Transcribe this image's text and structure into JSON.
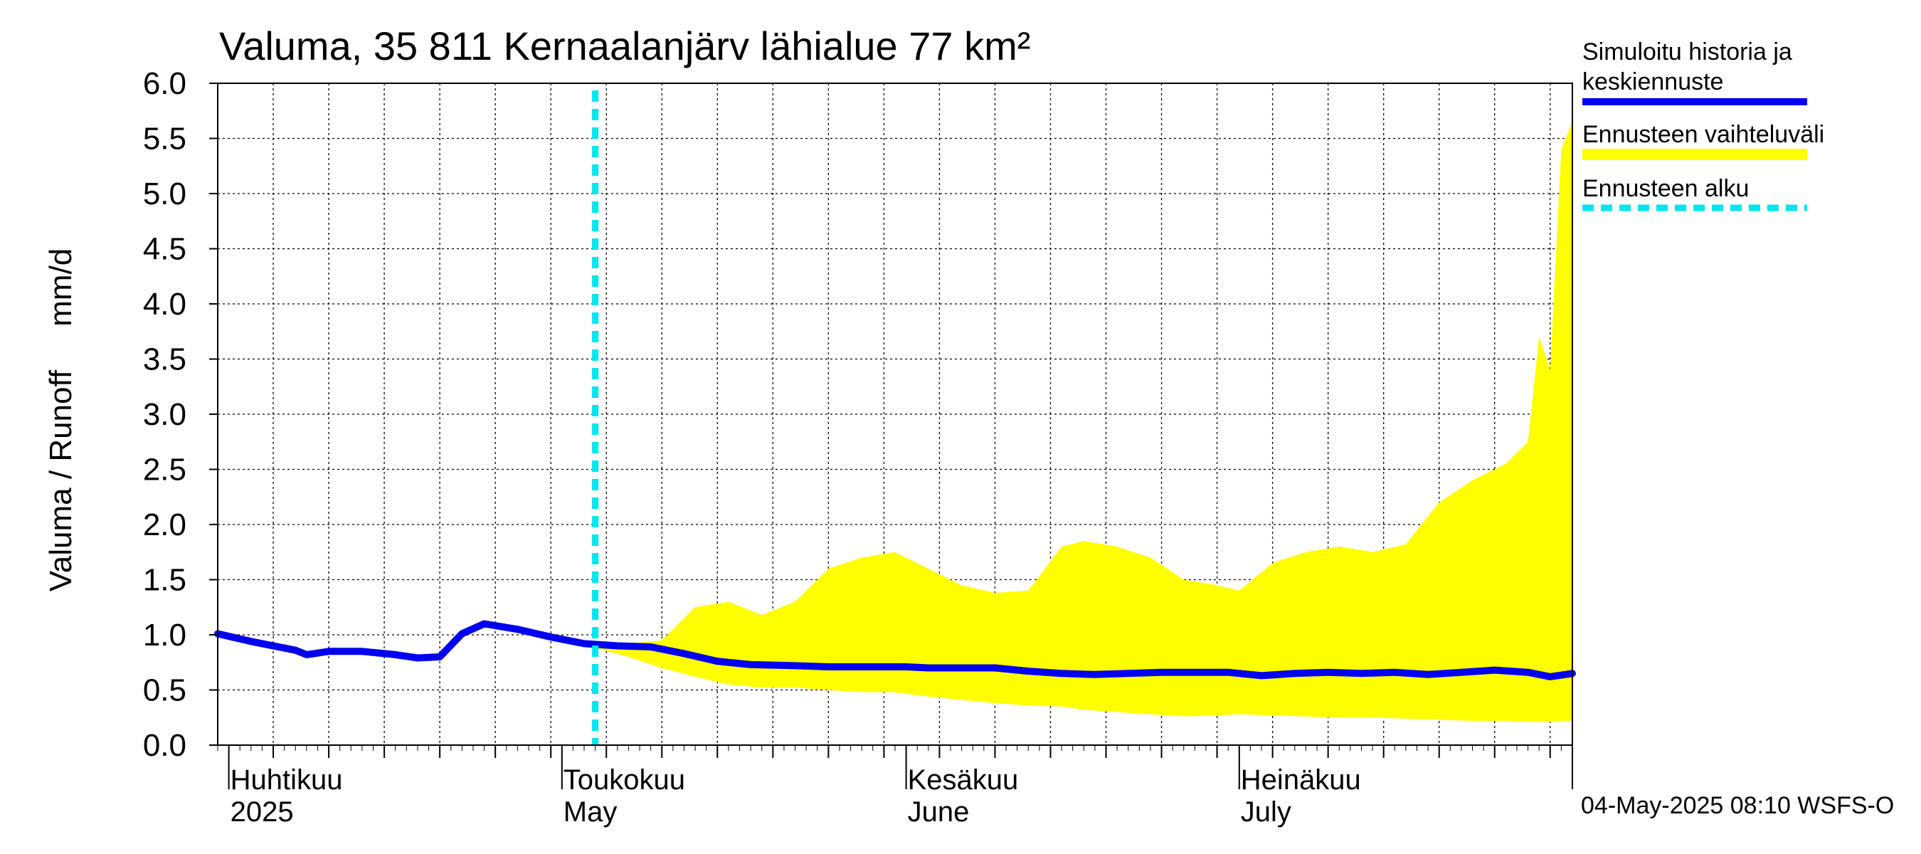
{
  "chart_data": {
    "type": "area",
    "title": "Valuma, 35 811 Kernaalanjärv lähialue 77 km²",
    "ylabel": "Valuma / Runoff     mm/d",
    "ylim": [
      0,
      6
    ],
    "yticks": [
      "0.0",
      "0.5",
      "1.0",
      "1.5",
      "2.0",
      "2.5",
      "3.0",
      "3.5",
      "4.0",
      "4.5",
      "5.0",
      "5.5",
      "6.0"
    ],
    "xlim": [
      "2025-03-31",
      "2025-07-31"
    ],
    "month_labels": [
      {
        "date": "2025-04-01",
        "fi": "Huhtikuu",
        "en": "2025"
      },
      {
        "date": "2025-05-01",
        "fi": "Toukokuu",
        "en": "May"
      },
      {
        "date": "2025-06-01",
        "fi": "Kesäkuu",
        "en": "June"
      },
      {
        "date": "2025-07-01",
        "fi": "Heinäkuu",
        "en": "July"
      }
    ],
    "forecast_start": "2025-05-04",
    "series": [
      {
        "name": "Simuloitu historia ja keskiennuste",
        "color": "#0000ee",
        "x": [
          "2025-03-31",
          "2025-04-03",
          "2025-04-07",
          "2025-04-08",
          "2025-04-10",
          "2025-04-13",
          "2025-04-16",
          "2025-04-18",
          "2025-04-20",
          "2025-04-22",
          "2025-04-24",
          "2025-04-27",
          "2025-04-30",
          "2025-05-01",
          "2025-05-03",
          "2025-05-06",
          "2025-05-09",
          "2025-05-12",
          "2025-05-15",
          "2025-05-18",
          "2025-05-22",
          "2025-05-25",
          "2025-05-28",
          "2025-06-01",
          "2025-06-03",
          "2025-06-06",
          "2025-06-09",
          "2025-06-12",
          "2025-06-15",
          "2025-06-18",
          "2025-06-21",
          "2025-06-24",
          "2025-06-27",
          "2025-06-30",
          "2025-07-03",
          "2025-07-06",
          "2025-07-09",
          "2025-07-12",
          "2025-07-15",
          "2025-07-18",
          "2025-07-21",
          "2025-07-24",
          "2025-07-27",
          "2025-07-29",
          "2025-07-31"
        ],
        "values": [
          1.01,
          0.94,
          0.86,
          0.82,
          0.85,
          0.85,
          0.82,
          0.79,
          0.8,
          1.01,
          1.1,
          1.05,
          0.98,
          0.96,
          0.92,
          0.9,
          0.89,
          0.83,
          0.76,
          0.73,
          0.72,
          0.71,
          0.71,
          0.71,
          0.7,
          0.7,
          0.7,
          0.67,
          0.65,
          0.64,
          0.65,
          0.66,
          0.66,
          0.66,
          0.63,
          0.65,
          0.66,
          0.65,
          0.66,
          0.64,
          0.66,
          0.68,
          0.66,
          0.62,
          0.65
        ]
      },
      {
        "name": "Ennusteen vaihteluväli",
        "color": "#ffff00",
        "x": [
          "2025-05-04",
          "2025-05-07",
          "2025-05-10",
          "2025-05-13",
          "2025-05-16",
          "2025-05-19",
          "2025-05-22",
          "2025-05-25",
          "2025-05-28",
          "2025-05-31",
          "2025-06-03",
          "2025-06-06",
          "2025-06-09",
          "2025-06-12",
          "2025-06-15",
          "2025-06-17",
          "2025-06-20",
          "2025-06-23",
          "2025-06-26",
          "2025-06-29",
          "2025-07-01",
          "2025-07-04",
          "2025-07-07",
          "2025-07-10",
          "2025-07-13",
          "2025-07-16",
          "2025-07-19",
          "2025-07-22",
          "2025-07-25",
          "2025-07-27",
          "2025-07-28",
          "2025-07-29",
          "2025-07-30",
          "2025-07-31"
        ],
        "upper": [
          0.9,
          0.92,
          0.95,
          1.25,
          1.3,
          1.18,
          1.3,
          1.6,
          1.7,
          1.75,
          1.6,
          1.45,
          1.38,
          1.4,
          1.8,
          1.85,
          1.8,
          1.7,
          1.5,
          1.45,
          1.4,
          1.65,
          1.75,
          1.8,
          1.75,
          1.82,
          2.2,
          2.4,
          2.55,
          2.75,
          3.7,
          3.4,
          5.4,
          5.65
        ],
        "lower": [
          0.88,
          0.8,
          0.7,
          0.62,
          0.55,
          0.52,
          0.52,
          0.5,
          0.48,
          0.48,
          0.44,
          0.41,
          0.38,
          0.36,
          0.35,
          0.32,
          0.3,
          0.28,
          0.26,
          0.27,
          0.28,
          0.27,
          0.26,
          0.25,
          0.25,
          0.24,
          0.23,
          0.22,
          0.22,
          0.21,
          0.21,
          0.21,
          0.22,
          0.22
        ]
      }
    ],
    "legend": [
      {
        "label_1": "Simuloitu historia ja",
        "label_2": "keskiennuste",
        "style": "solid",
        "color": "#0000ee"
      },
      {
        "label_1": "Ennusteen vaihteluväli",
        "label_2": "",
        "style": "band",
        "color": "#ffff00"
      },
      {
        "label_1": "Ennusteen alku",
        "label_2": "",
        "style": "dashed",
        "color": "#00e5ee"
      }
    ],
    "footer": "04-May-2025 08:10 WSFS-O"
  }
}
